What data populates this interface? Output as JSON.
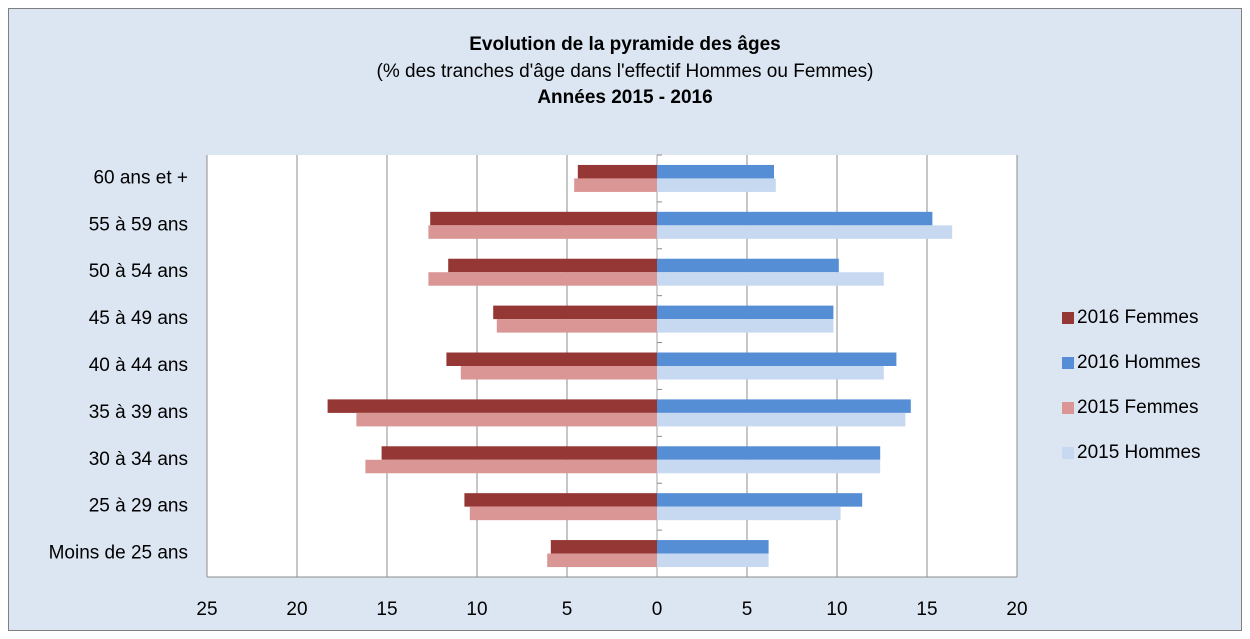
{
  "chart_data": {
    "type": "bar",
    "orientation": "horizontal",
    "title": "Evolution de la pyramide des âges",
    "subtitle": "(% des tranches d'âge dans l'effectif Hommes ou Femmes)",
    "subtitle2": "Années 2015 - 2016",
    "categories": [
      "60 ans et +",
      "55 à 59 ans",
      "50 à 54 ans",
      "45 à 49 ans",
      "40 à 44 ans",
      "35 à 39 ans",
      "30 à 34 ans",
      "25 à 29 ans",
      "Moins de 25 ans"
    ],
    "series": [
      {
        "name": "2016 Femmes",
        "color": "#953735",
        "values": [
          -4.4,
          -12.6,
          -11.6,
          -9.1,
          -11.7,
          -18.3,
          -15.3,
          -10.7,
          -5.9
        ]
      },
      {
        "name": "2016 Hommes",
        "color": "#558ed5",
        "values": [
          6.5,
          15.3,
          10.1,
          9.8,
          13.3,
          14.1,
          12.4,
          11.4,
          6.2
        ]
      },
      {
        "name": "2015 Femmes",
        "color": "#d99694",
        "values": [
          -4.6,
          -12.7,
          -12.7,
          -8.9,
          -10.9,
          -16.7,
          -16.2,
          -10.4,
          -6.1
        ]
      },
      {
        "name": "2015 Hommes",
        "color": "#c6d9f1",
        "values": [
          6.6,
          16.4,
          12.6,
          9.8,
          12.6,
          13.8,
          12.4,
          10.2,
          6.2
        ]
      }
    ],
    "xlim": [
      -25,
      20
    ],
    "xticks": [
      {
        "value": -25,
        "label": "25"
      },
      {
        "value": -20,
        "label": "20"
      },
      {
        "value": -15,
        "label": "15"
      },
      {
        "value": -10,
        "label": "10"
      },
      {
        "value": -5,
        "label": "5"
      },
      0,
      5,
      10,
      15,
      20
    ],
    "grid": true,
    "legend": "right"
  }
}
